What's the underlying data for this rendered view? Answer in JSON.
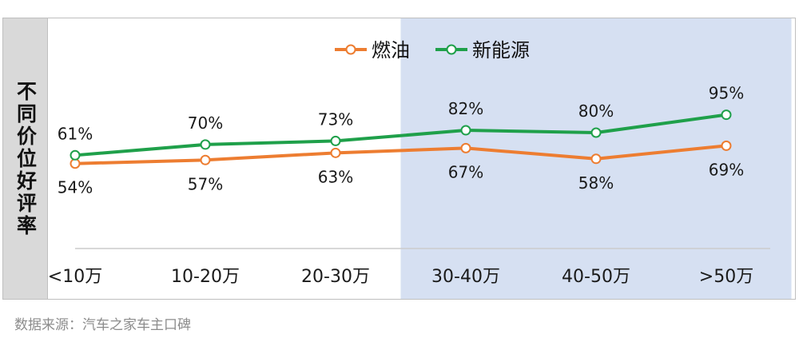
{
  "side_title": "不同价位好评率",
  "source": "数据来源：汽车之家车主口碑",
  "colors": {
    "fuel": "#ed7d31",
    "nev": "#1fa04a",
    "highlight": "#d6e0f2",
    "side": "#d9d9d9"
  },
  "chart_data": {
    "type": "line",
    "categories": [
      "<10万",
      "10-20万",
      "20-30万",
      "30-40万",
      "40-50万",
      ">50万"
    ],
    "series": [
      {
        "name": "燃油",
        "values": [
          54,
          57,
          63,
          67,
          58,
          69
        ],
        "labels": [
          "54%",
          "57%",
          "63%",
          "67%",
          "58%",
          "69%"
        ]
      },
      {
        "name": "新能源",
        "values": [
          61,
          70,
          73,
          82,
          80,
          95
        ],
        "labels": [
          "61%",
          "70%",
          "73%",
          "82%",
          "80%",
          "95%"
        ]
      }
    ],
    "highlight_categories": [
      "30-40万",
      "40-50万",
      ">50万"
    ],
    "legend": "top-center",
    "grid": false
  }
}
